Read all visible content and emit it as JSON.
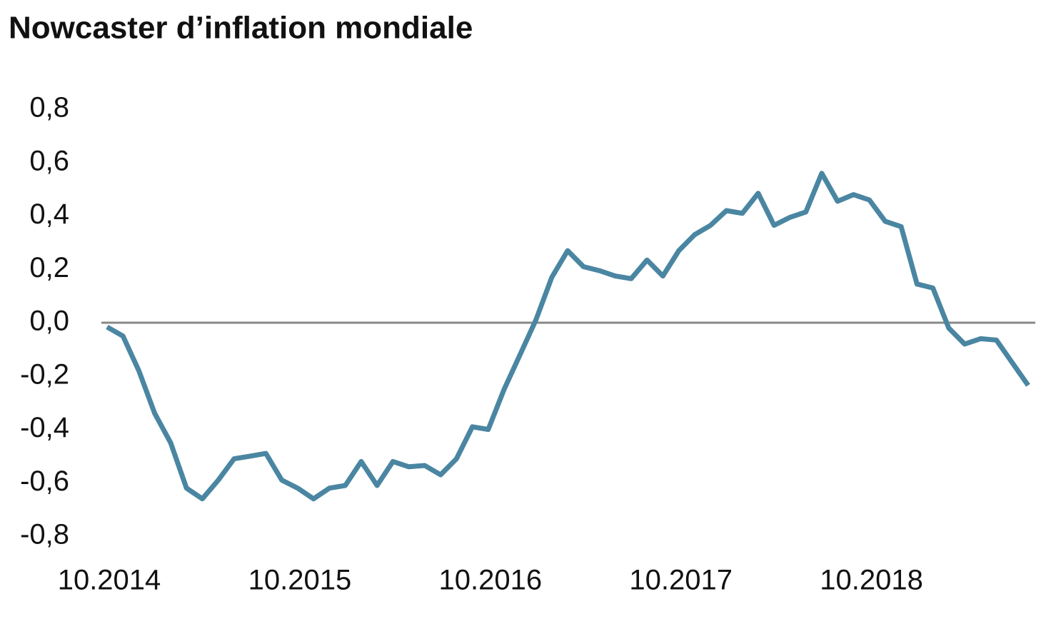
{
  "chart_data": {
    "type": "line",
    "title": "Nowcaster d’inflation mondiale",
    "categories": [
      "10.2014",
      null,
      null,
      null,
      null,
      null,
      null,
      null,
      null,
      null,
      null,
      null,
      "10.2015",
      null,
      null,
      null,
      null,
      null,
      null,
      null,
      null,
      null,
      null,
      null,
      "10.2016",
      null,
      null,
      null,
      null,
      null,
      null,
      null,
      null,
      null,
      null,
      null,
      "10.2017",
      null,
      null,
      null,
      null,
      null,
      null,
      null,
      null,
      null,
      null,
      null,
      "10.2018",
      null,
      null,
      null,
      null,
      null,
      null,
      null,
      null,
      null,
      null
    ],
    "series": [
      {
        "name": "Nowcaster d’inflation mondiale",
        "color": "#4a86a2",
        "values": [
          -0.016,
          -0.05,
          -0.18,
          -0.34,
          -0.45,
          -0.62,
          -0.66,
          -0.59,
          -0.51,
          -0.5,
          -0.49,
          -0.59,
          -0.62,
          -0.66,
          -0.62,
          -0.61,
          -0.52,
          -0.61,
          -0.52,
          -0.54,
          -0.535,
          -0.57,
          -0.51,
          -0.39,
          -0.4,
          -0.25,
          -0.12,
          0.01,
          0.17,
          0.27,
          0.21,
          0.195,
          0.175,
          0.165,
          0.235,
          0.175,
          0.27,
          0.33,
          0.365,
          0.42,
          0.41,
          0.485,
          0.365,
          0.395,
          0.415,
          0.56,
          0.455,
          0.48,
          0.46,
          0.38,
          0.36,
          0.145,
          0.13,
          -0.02,
          -0.08,
          -0.06,
          -0.065,
          -0.15,
          -0.235
        ]
      }
    ],
    "ylim": [
      -0.8,
      0.8
    ],
    "yticks": [
      {
        "value": -0.8,
        "label": "-0,8"
      },
      {
        "value": -0.6,
        "label": "-0,6"
      },
      {
        "value": -0.4,
        "label": "-0,4"
      },
      {
        "value": -0.2,
        "label": "-0,2"
      },
      {
        "value": 0,
        "label": "0,0"
      },
      {
        "value": 0.2,
        "label": "0,2"
      },
      {
        "value": 0.4,
        "label": "0,4"
      },
      {
        "value": 0.6,
        "label": "0,6"
      },
      {
        "value": 0.8,
        "label": "0,8"
      }
    ],
    "zero_line": true
  }
}
